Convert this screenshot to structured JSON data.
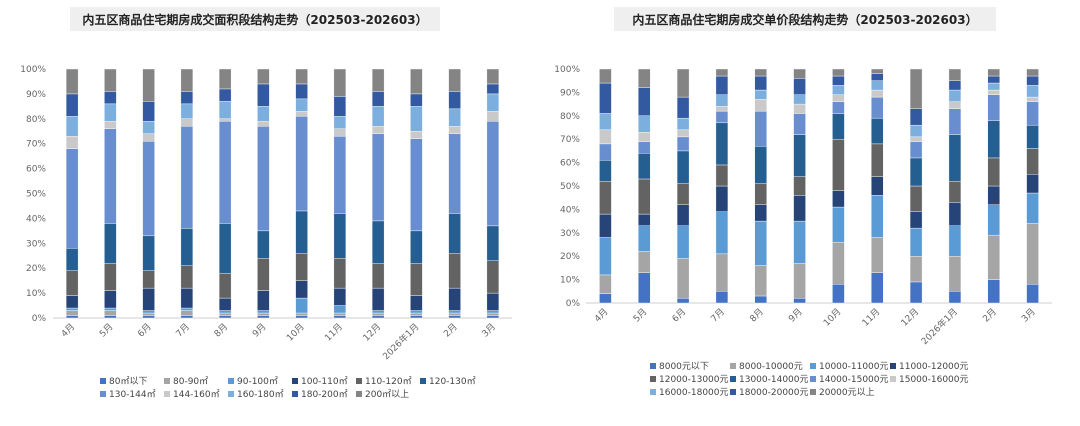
{
  "chart_data": [
    {
      "type": "bar",
      "stacked": true,
      "normalized": true,
      "title": "内五区商品住宅期房成交面积段结构走势（202503-202603）",
      "xlabel": "",
      "ylabel": "",
      "ylim": [
        0,
        100
      ],
      "yticks": [
        "0%",
        "10%",
        "20%",
        "30%",
        "40%",
        "50%",
        "60%",
        "70%",
        "80%",
        "90%",
        "100%"
      ],
      "grid": false,
      "legend_position": "bottom",
      "categories": [
        "4月",
        "5月",
        "6月",
        "7月",
        "8月",
        "9月",
        "10月",
        "11月",
        "12月",
        "2026年1月",
        "2月",
        "3月"
      ],
      "series": [
        {
          "name": "80㎡以下",
          "color": "#4472c4",
          "values": [
            1,
            1,
            1,
            1,
            1,
            1,
            1,
            1,
            1,
            1,
            1,
            1
          ]
        },
        {
          "name": "80-90㎡",
          "color": "#a5a5a5",
          "values": [
            2,
            2,
            1,
            2,
            1,
            1,
            1,
            1,
            1,
            1,
            1,
            1
          ]
        },
        {
          "name": "90-100㎡",
          "color": "#5b9bd5",
          "values": [
            1,
            1,
            1,
            1,
            1,
            1,
            6,
            3,
            1,
            1,
            1,
            1
          ]
        },
        {
          "name": "100-110㎡",
          "color": "#264478",
          "values": [
            5,
            7,
            9,
            8,
            5,
            8,
            7,
            7,
            9,
            6,
            9,
            7
          ]
        },
        {
          "name": "110-120㎡",
          "color": "#636363",
          "values": [
            10,
            11,
            7,
            9,
            10,
            13,
            11,
            12,
            10,
            13,
            14,
            13
          ]
        },
        {
          "name": "120-130㎡",
          "color": "#255e91",
          "values": [
            9,
            16,
            14,
            15,
            20,
            11,
            17,
            18,
            17,
            13,
            16,
            14
          ]
        },
        {
          "name": "130-144㎡",
          "color": "#698ed0",
          "values": [
            40,
            38,
            38,
            41,
            41,
            42,
            38,
            31,
            35,
            37,
            32,
            42
          ]
        },
        {
          "name": "144-160㎡",
          "color": "#c9c9c9",
          "values": [
            5,
            3,
            3,
            3,
            1,
            2,
            2,
            3,
            3,
            3,
            3,
            4
          ]
        },
        {
          "name": "160-180㎡",
          "color": "#7cafdd",
          "values": [
            8,
            7,
            5,
            6,
            7,
            6,
            5,
            5,
            8,
            10,
            7,
            7
          ]
        },
        {
          "name": "180-200㎡",
          "color": "#335aa1",
          "values": [
            9,
            5,
            8,
            5,
            5,
            9,
            6,
            8,
            6,
            5,
            7,
            4
          ]
        },
        {
          "name": "200㎡以上",
          "color": "#848484",
          "values": [
            10,
            9,
            13,
            9,
            8,
            6,
            6,
            11,
            9,
            10,
            9,
            6
          ]
        }
      ]
    },
    {
      "type": "bar",
      "stacked": true,
      "normalized": true,
      "title": "内五区商品住宅期房成交单价段结构走势（202503-202603）",
      "xlabel": "",
      "ylabel": "",
      "ylim": [
        0,
        100
      ],
      "yticks": [
        "0%",
        "10%",
        "20%",
        "30%",
        "40%",
        "50%",
        "60%",
        "70%",
        "80%",
        "90%",
        "100%"
      ],
      "grid": false,
      "legend_position": "bottom",
      "categories": [
        "4月",
        "5月",
        "6月",
        "7月",
        "8月",
        "9月",
        "10月",
        "11月",
        "12月",
        "2026年1月",
        "2月",
        "3月"
      ],
      "series": [
        {
          "name": "8000元以下",
          "color": "#4472c4",
          "values": [
            4,
            13,
            2,
            5,
            3,
            2,
            8,
            13,
            9,
            5,
            10,
            8
          ]
        },
        {
          "name": "8000-10000元",
          "color": "#a5a5a5",
          "values": [
            8,
            9,
            17,
            16,
            13,
            15,
            18,
            15,
            11,
            15,
            19,
            26
          ]
        },
        {
          "name": "10000-11000元",
          "color": "#5b9bd5",
          "values": [
            16,
            11,
            14,
            18,
            19,
            18,
            15,
            18,
            12,
            13,
            13,
            13
          ]
        },
        {
          "name": "11000-12000元",
          "color": "#264478",
          "values": [
            10,
            5,
            9,
            11,
            7,
            11,
            7,
            8,
            7,
            10,
            8,
            8
          ]
        },
        {
          "name": "12000-13000元",
          "color": "#636363",
          "values": [
            14,
            15,
            9,
            9,
            9,
            8,
            22,
            14,
            11,
            9,
            12,
            11
          ]
        },
        {
          "name": "13000-14000元",
          "color": "#255e91",
          "values": [
            9,
            11,
            14,
            18,
            16,
            18,
            11,
            11,
            12,
            20,
            16,
            10
          ]
        },
        {
          "name": "14000-15000元",
          "color": "#698ed0",
          "values": [
            7,
            5,
            6,
            5,
            15,
            9,
            5,
            9,
            7,
            11,
            11,
            10
          ]
        },
        {
          "name": "15000-16000元",
          "color": "#c9c9c9",
          "values": [
            6,
            4,
            3,
            2,
            5,
            4,
            3,
            3,
            2,
            3,
            2,
            2
          ]
        },
        {
          "name": "16000-18000元",
          "color": "#7cafdd",
          "values": [
            7,
            7,
            5,
            5,
            4,
            4,
            4,
            4,
            5,
            5,
            3,
            5
          ]
        },
        {
          "name": "18000-20000元",
          "color": "#335aa1",
          "values": [
            13,
            12,
            9,
            8,
            6,
            7,
            4,
            3,
            7,
            4,
            3,
            4
          ]
        },
        {
          "name": "20000元以上",
          "color": "#848484",
          "values": [
            6,
            8,
            12,
            3,
            3,
            4,
            3,
            2,
            17,
            5,
            3,
            3
          ]
        }
      ]
    }
  ]
}
